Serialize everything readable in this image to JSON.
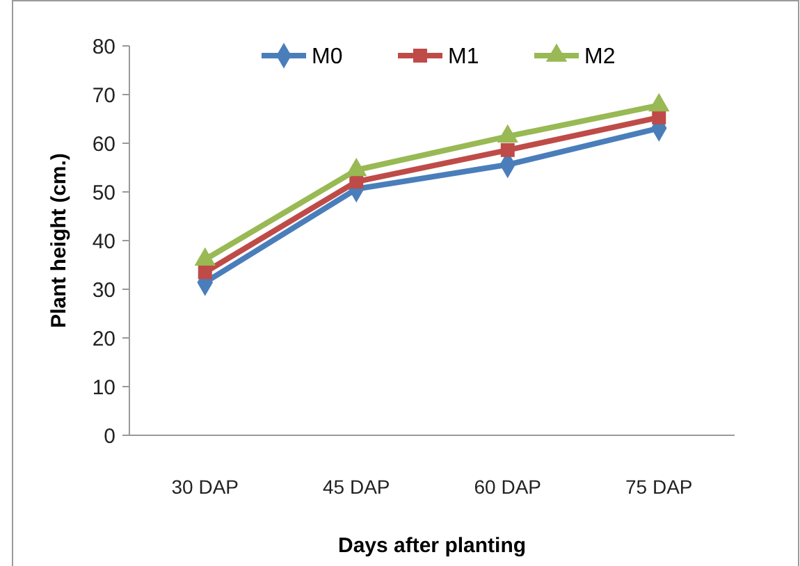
{
  "chart_data": {
    "type": "line",
    "xlabel": "Days after planting",
    "ylabel": "Plant height (cm.)",
    "categories": [
      "30 DAP",
      "45 DAP",
      "60 DAP",
      "75 DAP"
    ],
    "series": [
      {
        "name": "M0",
        "color": "#4a7ebb",
        "marker": "diamond",
        "values": [
          31.4,
          50.6,
          55.6,
          63.1
        ]
      },
      {
        "name": "M1",
        "color": "#be4b48",
        "marker": "square",
        "values": [
          33.5,
          52.1,
          58.6,
          65.3
        ]
      },
      {
        "name": "M2",
        "color": "#98b954",
        "marker": "triangle",
        "values": [
          36.1,
          54.5,
          61.4,
          67.8
        ]
      }
    ],
    "ylim": [
      0,
      80
    ],
    "yticks": [
      0,
      10,
      20,
      30,
      40,
      50,
      60,
      70,
      80
    ],
    "grid": false,
    "legend": "top",
    "line_style": "solid"
  }
}
